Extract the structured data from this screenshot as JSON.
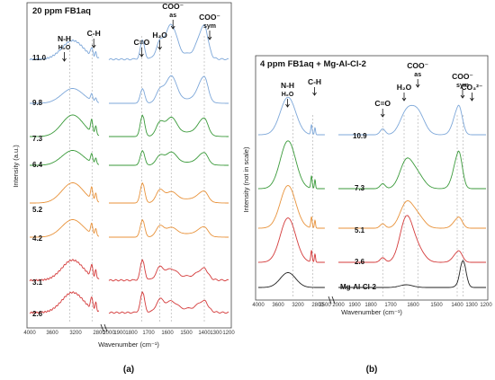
{
  "chart_data": [
    {
      "type": "line",
      "panel_label": "(a)",
      "title": "20 ppm FB1aq",
      "xlabel": "Wavenumber (cm⁻¹)",
      "ylabel": "Intensity (a.u.)",
      "xlim": [
        4000,
        1200
      ],
      "x_ticks": [
        "4000",
        "3600",
        "3200",
        "2800",
        "2000",
        "1900",
        "1800",
        "1700",
        "1600",
        "1500",
        "1400",
        "1300",
        "1200"
      ],
      "x_tick_values": [
        4000,
        3600,
        3200,
        2800,
        2000,
        1900,
        1800,
        1700,
        1600,
        1500,
        1400,
        1300,
        1200
      ],
      "band_markers": [
        {
          "label": "N-H",
          "sub": "H₂O",
          "x": 3300
        },
        {
          "label": "C-H",
          "sub": "",
          "x": 2920
        },
        {
          "label": "C=O",
          "sub": "",
          "x": 1740
        },
        {
          "label": "H₂O",
          "sub": "",
          "x": 1640
        },
        {
          "label": "COO⁻",
          "sub": "as",
          "x": 1580
        },
        {
          "label": "COO⁻",
          "sub": "sym",
          "x": 1400
        }
      ],
      "series": [
        {
          "name": "11.0",
          "color": "#7da7d9"
        },
        {
          "name": "9.8",
          "color": "#7da7d9"
        },
        {
          "name": "7.3",
          "color": "#3a9a3a"
        },
        {
          "name": "6.4",
          "color": "#3a9a3a"
        },
        {
          "name": "5.2",
          "color": "#e8923a"
        },
        {
          "name": "4.2",
          "color": "#e8923a"
        },
        {
          "name": "3.1",
          "color": "#d43a3a"
        },
        {
          "name": "2.6",
          "color": "#d43a3a"
        }
      ]
    },
    {
      "type": "line",
      "panel_label": "(b)",
      "title": "4 ppm FB1aq + Mg-Al-Cl-2",
      "xlabel": "Wavenumber (cm⁻¹)",
      "ylabel": "Intensity (not in scale)",
      "xlim": [
        4000,
        1200
      ],
      "x_ticks": [
        "4000",
        "3600",
        "3200",
        "2800",
        "2500",
        "2000",
        "1900",
        "1800",
        "1700",
        "1600",
        "1500",
        "1400",
        "1300",
        "1200"
      ],
      "x_tick_values": [
        4000,
        3600,
        3200,
        2800,
        2500,
        2000,
        1900,
        1800,
        1700,
        1600,
        1500,
        1400,
        1300,
        1200
      ],
      "band_markers": [
        {
          "label": "N-H",
          "sub": "H₂O",
          "x": 3300
        },
        {
          "label": "C-H",
          "sub": "",
          "x": 2900
        },
        {
          "label": "C=O",
          "sub": "",
          "x": 1740
        },
        {
          "label": "H₂O",
          "sub": "",
          "x": 1640
        },
        {
          "label": "COO⁻",
          "sub": "as",
          "x": 1580
        },
        {
          "label": "COO⁻",
          "sub": "sym",
          "x": 1400
        },
        {
          "label": "CO₃²⁻",
          "sub": "",
          "x": 1360
        }
      ],
      "series": [
        {
          "name": "10.9",
          "color": "#7da7d9"
        },
        {
          "name": "7.3",
          "color": "#3a9a3a"
        },
        {
          "name": "5.1",
          "color": "#e8923a"
        },
        {
          "name": "2.6",
          "color": "#d43a3a"
        },
        {
          "name": "Mg-Al-Cl-2",
          "color": "#222222"
        }
      ]
    }
  ]
}
